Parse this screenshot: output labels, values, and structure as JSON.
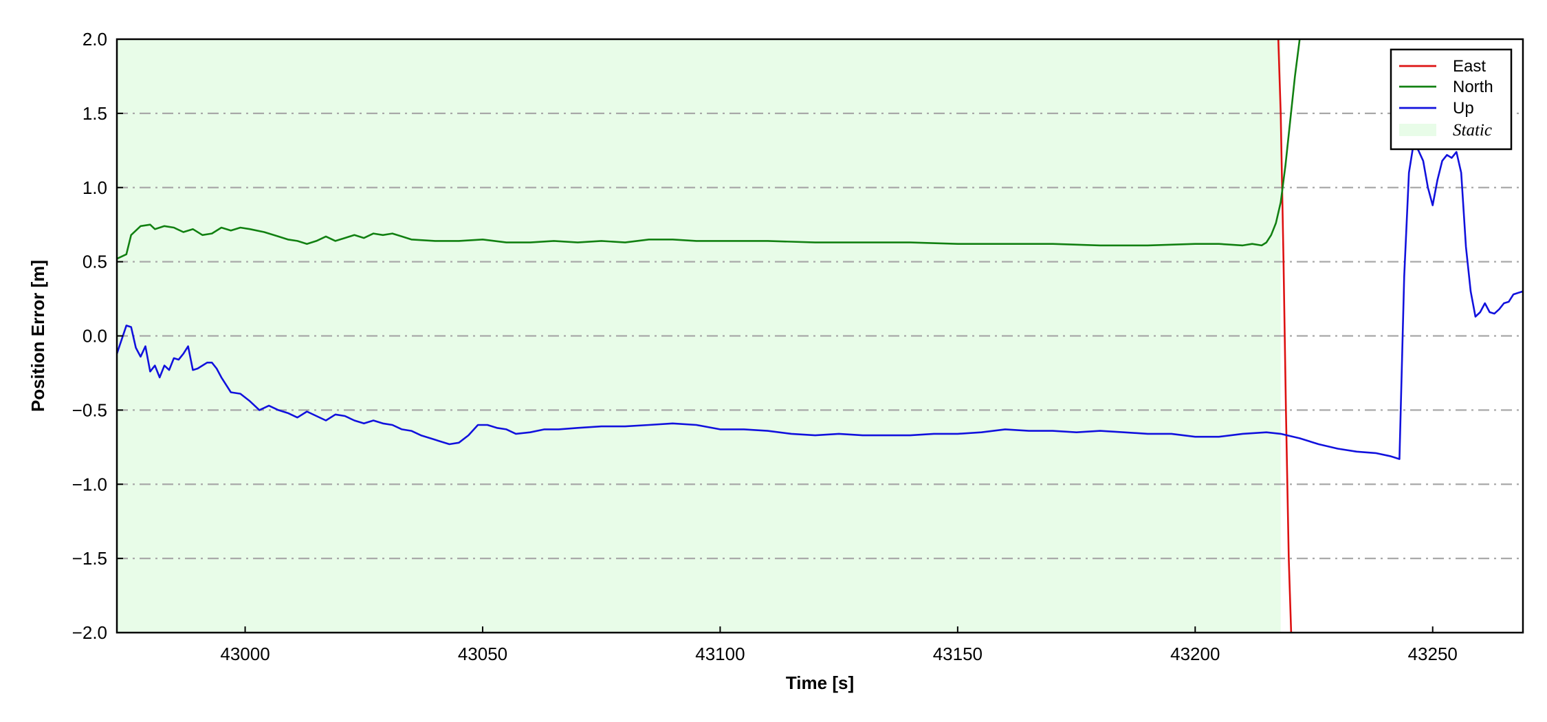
{
  "chart_data": {
    "type": "line",
    "title": "",
    "xlabel": "Time [s]",
    "ylabel": "Position Error [m]",
    "xlim": [
      42973,
      43269
    ],
    "ylim": [
      -2.0,
      2.0
    ],
    "xticks": [
      43000,
      43050,
      43100,
      43150,
      43200,
      43250
    ],
    "xtick_labels": [
      "43000",
      "43050",
      "43100",
      "43150",
      "43200",
      "43250"
    ],
    "yticks": [
      -2.0,
      -1.5,
      -1.0,
      -0.5,
      0.0,
      0.5,
      1.0,
      1.5,
      2.0
    ],
    "ytick_labels": [
      "−2.0",
      "−1.5",
      "−1.0",
      "−0.5",
      "0.0",
      "0.5",
      "1.0",
      "1.5",
      "2.0"
    ],
    "grid": "horizontal dash-dot",
    "legend_position": "top-right",
    "static_region": {
      "label": "Static",
      "x": [
        42973,
        43218
      ],
      "color": "#e8fce8"
    },
    "series": [
      {
        "name": "East",
        "color": "#dd1111",
        "x": [
          43217.5,
          43218.0,
          43218.6,
          43219.1,
          43219.7,
          43220.2
        ],
        "y": [
          2.0,
          1.5,
          0.5,
          -0.5,
          -1.5,
          -2.0
        ]
      },
      {
        "name": "North",
        "color": "#118011",
        "x": [
          42973,
          42975,
          42976,
          42978,
          42980,
          42981,
          42983,
          42985,
          42987,
          42989,
          42991,
          42993,
          42995,
          42997,
          42999,
          43001,
          43004,
          43007,
          43009,
          43011,
          43013,
          43015,
          43017,
          43019,
          43021,
          43023,
          43025,
          43027,
          43029,
          43031,
          43033,
          43035,
          43040,
          43045,
          43050,
          43055,
          43060,
          43065,
          43070,
          43075,
          43080,
          43085,
          43090,
          43095,
          43100,
          43105,
          43110,
          43120,
          43130,
          43140,
          43150,
          43160,
          43170,
          43180,
          43190,
          43200,
          43205,
          43210,
          43212,
          43214,
          43215,
          43216,
          43217,
          43218,
          43219,
          43220,
          43221,
          43222
        ],
        "y": [
          0.52,
          0.55,
          0.68,
          0.74,
          0.75,
          0.72,
          0.74,
          0.73,
          0.7,
          0.72,
          0.68,
          0.69,
          0.73,
          0.71,
          0.73,
          0.72,
          0.7,
          0.67,
          0.65,
          0.64,
          0.62,
          0.64,
          0.67,
          0.64,
          0.66,
          0.68,
          0.66,
          0.69,
          0.68,
          0.69,
          0.67,
          0.65,
          0.64,
          0.64,
          0.65,
          0.63,
          0.63,
          0.64,
          0.63,
          0.64,
          0.63,
          0.65,
          0.65,
          0.64,
          0.64,
          0.64,
          0.64,
          0.63,
          0.63,
          0.63,
          0.62,
          0.62,
          0.62,
          0.61,
          0.61,
          0.62,
          0.62,
          0.61,
          0.62,
          0.61,
          0.63,
          0.68,
          0.76,
          0.9,
          1.15,
          1.45,
          1.75,
          2.0
        ]
      },
      {
        "name": "Up",
        "color": "#1111dd",
        "x": [
          42973,
          42975,
          42976,
          42977,
          42978,
          42979,
          42980,
          42981,
          42982,
          42983,
          42984,
          42985,
          42986,
          42987,
          42988,
          42989,
          42990,
          42991,
          42992,
          42993,
          42994,
          42995,
          42997,
          42999,
          43001,
          43003,
          43005,
          43007,
          43009,
          43011,
          43013,
          43015,
          43017,
          43019,
          43021,
          43023,
          43025,
          43027,
          43029,
          43031,
          43033,
          43035,
          43037,
          43039,
          43041,
          43043,
          43045,
          43047,
          43049,
          43051,
          43053,
          43055,
          43057,
          43060,
          43063,
          43066,
          43070,
          43075,
          43080,
          43085,
          43090,
          43095,
          43100,
          43105,
          43110,
          43115,
          43120,
          43125,
          43130,
          43135,
          43140,
          43145,
          43150,
          43155,
          43160,
          43165,
          43170,
          43175,
          43180,
          43185,
          43190,
          43195,
          43200,
          43205,
          43210,
          43215,
          43218,
          43222,
          43226,
          43230,
          43234,
          43238,
          43241,
          43242,
          43243,
          43244,
          43245,
          43246,
          43247,
          43248,
          43249,
          43250,
          43251,
          43252,
          43253,
          43254,
          43255,
          43256,
          43257,
          43258,
          43259,
          43260,
          43261,
          43262,
          43263,
          43264,
          43265,
          43266,
          43267,
          43268,
          43269
        ],
        "y": [
          -0.12,
          0.07,
          0.06,
          -0.08,
          -0.14,
          -0.07,
          -0.24,
          -0.2,
          -0.28,
          -0.2,
          -0.23,
          -0.15,
          -0.16,
          -0.12,
          -0.07,
          -0.23,
          -0.22,
          -0.2,
          -0.18,
          -0.18,
          -0.22,
          -0.28,
          -0.38,
          -0.39,
          -0.44,
          -0.5,
          -0.47,
          -0.5,
          -0.52,
          -0.55,
          -0.51,
          -0.54,
          -0.57,
          -0.53,
          -0.54,
          -0.57,
          -0.59,
          -0.57,
          -0.59,
          -0.6,
          -0.63,
          -0.64,
          -0.67,
          -0.69,
          -0.71,
          -0.73,
          -0.72,
          -0.67,
          -0.6,
          -0.6,
          -0.62,
          -0.63,
          -0.66,
          -0.65,
          -0.63,
          -0.63,
          -0.62,
          -0.61,
          -0.61,
          -0.6,
          -0.59,
          -0.6,
          -0.63,
          -0.63,
          -0.64,
          -0.66,
          -0.67,
          -0.66,
          -0.67,
          -0.67,
          -0.67,
          -0.66,
          -0.66,
          -0.65,
          -0.63,
          -0.64,
          -0.64,
          -0.65,
          -0.64,
          -0.65,
          -0.66,
          -0.66,
          -0.68,
          -0.68,
          -0.66,
          -0.65,
          -0.66,
          -0.69,
          -0.73,
          -0.76,
          -0.78,
          -0.79,
          -0.81,
          -0.82,
          -0.83,
          0.4,
          1.1,
          1.3,
          1.25,
          1.18,
          1.0,
          0.88,
          1.05,
          1.18,
          1.22,
          1.2,
          1.24,
          1.1,
          0.6,
          0.3,
          0.13,
          0.16,
          0.22,
          0.16,
          0.15,
          0.18,
          0.22,
          0.23,
          0.28,
          0.29,
          0.3
        ]
      }
    ]
  }
}
